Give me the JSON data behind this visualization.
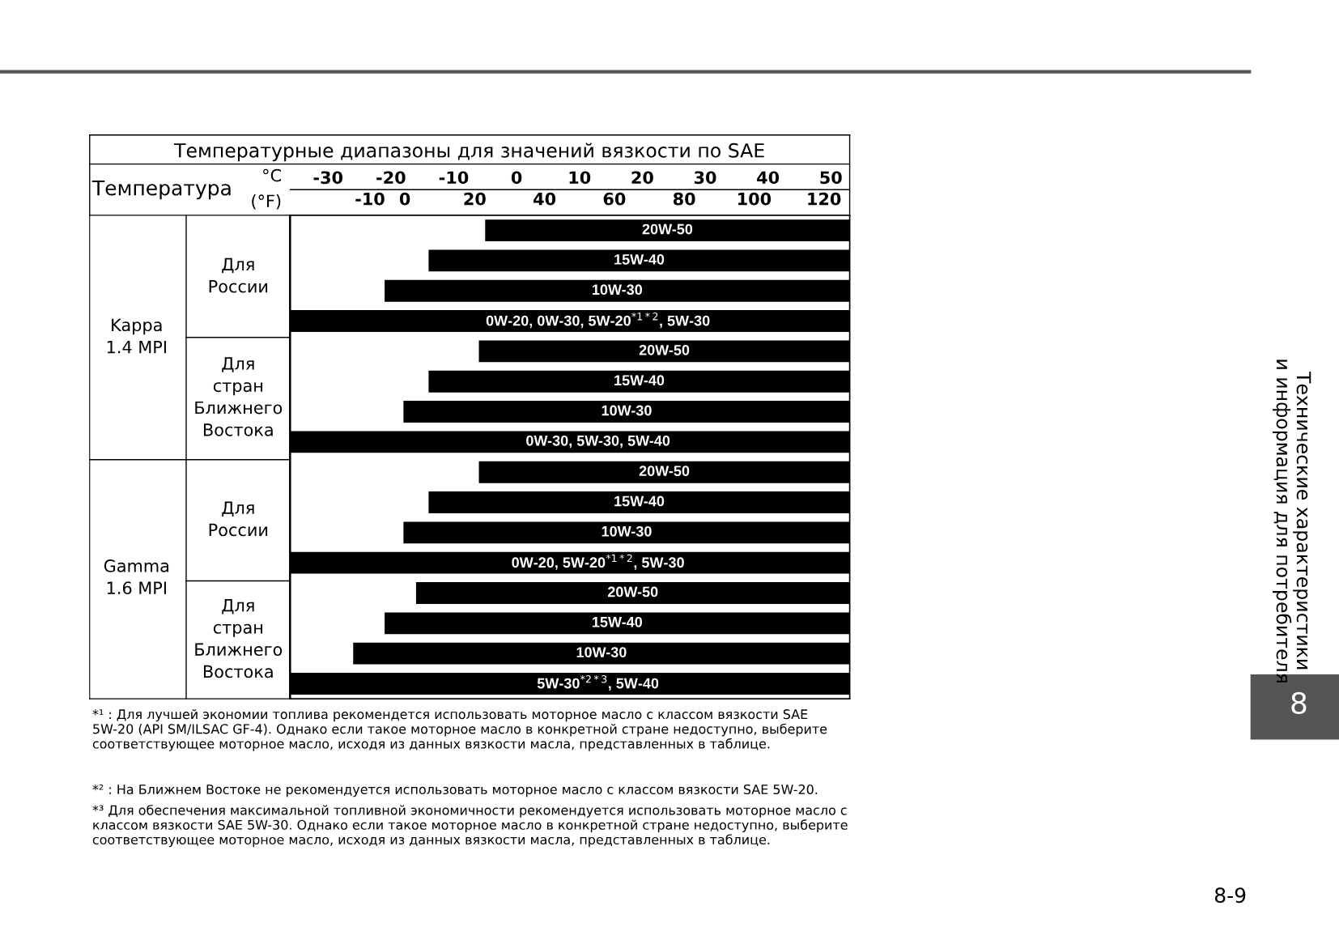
{
  "chart_data": {
    "type": "bar",
    "orientation": "horizontal",
    "title": "Температурные диапазоны для значений вязкости по SAE",
    "xlabel": "°C",
    "x2label": "(°F)",
    "categories": [
      "20W-50",
      "15W-40",
      "10W-30",
      "0W-20, 0W-30, 5W-20$^{*1*2}$, 5W-30",
      "20W-50",
      "15W-40",
      "10W-30",
      "0W-30, 5W-30, 5W-40",
      "20W-50",
      "15W-40",
      "10W-30",
      "0W-20, 5W-20$^{*1*2}$, 5W-30",
      "20W-50",
      "15W-40",
      "10W-30",
      "5W-30$^{*2*3}$, 5W-40"
    ],
    "base": [
      -5,
      -14,
      -21,
      -36,
      -6,
      -14,
      -18,
      -36,
      -6,
      -14,
      -18,
      -36,
      -16,
      -21,
      -26,
      -36
    ],
    "values": [
      58,
      67,
      74,
      89,
      59,
      67,
      71,
      89,
      59,
      67,
      71,
      89,
      69,
      74,
      79,
      89
    ],
    "color": "#000000",
    "xlim": [
      -36,
      53
    ],
    "xticks": [
      -30,
      -20,
      -10,
      0,
      10,
      20,
      30,
      40,
      50
    ],
    "x2lim": [
      -32.8,
      127.4
    ],
    "x2ticks": [
      -10,
      0,
      20,
      40,
      60,
      80,
      100,
      120
    ],
    "tick_labels": "x",
    "grid": false,
    "legend": false,
    "annotations": [
      "Температура",
      "Kappa\n1.4 MPI",
      "Для\nРоссии",
      "Для\nстран\nБлижнего\nВостока",
      "Gamma\n1.6 MPI",
      "Для\nРоссии",
      "Для\nстран\nБлижнего\nВостока",
      "*¹ : Для лучшей экономии топлива рекомендется использовать моторное масло с классом вязкости SAE 5W-20 (API SM/ILSAC GF-4). Однако если такое моторное масло в конкретной стране недоступно, выберите соответствующее моторное масло, исходя из данных вязкости масла, представленных в таблице.",
      "*² : На Ближнем Востоке не рекомендуется использовать моторное масло с классом вязкости SAE 5W-20.",
      "*³ Для обеспечения максимальной топливной экономичности рекомендуется использовать моторное масло с классом вязкости SAE 5W-30. Однако если такое моторное масло в конкретной стране недоступно, выберите соответствующее моторное масло, исходя из данных вязкости масла, представленных в таблице.",
      "Технические характеристики\nи информация для потребителя",
      "8",
      "8-9"
    ]
  }
}
